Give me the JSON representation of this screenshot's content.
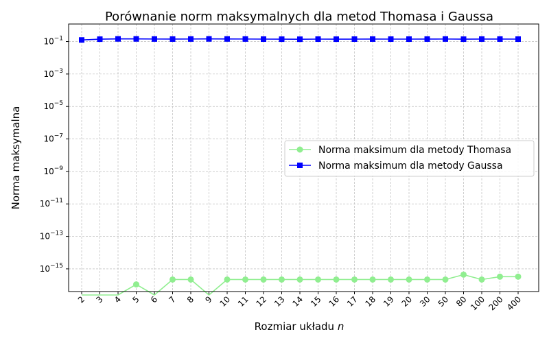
{
  "chart_data": {
    "type": "line",
    "title": "Porównanie norm maksymalnych dla metod Thomasa i Gaussa",
    "xlabel": "Rozmiar układu ",
    "xlabel_var": "n",
    "ylabel": "Norma maksymalna",
    "yscale": "log",
    "ylim": [
      4e-17,
      1.2
    ],
    "y_ticks": [
      {
        "label": "10",
        "exp": "−1",
        "value": 0.1
      },
      {
        "label": "10",
        "exp": "−3",
        "value": 0.001
      },
      {
        "label": "10",
        "exp": "−5",
        "value": 1e-05
      },
      {
        "label": "10",
        "exp": "−7",
        "value": 1e-07
      },
      {
        "label": "10",
        "exp": "−9",
        "value": 1e-09
      },
      {
        "label": "10",
        "exp": "−11",
        "value": 1e-11
      },
      {
        "label": "10",
        "exp": "−13",
        "value": 1e-13
      },
      {
        "label": "10",
        "exp": "−15",
        "value": 1e-15
      }
    ],
    "categories": [
      "2",
      "3",
      "4",
      "5",
      "6",
      "7",
      "8",
      "9",
      "10",
      "11",
      "12",
      "13",
      "14",
      "15",
      "16",
      "17",
      "18",
      "19",
      "20",
      "30",
      "50",
      "80",
      "100",
      "200",
      "400"
    ],
    "grid": true,
    "legend_position": "center-right",
    "series": [
      {
        "name": "Norma maksimum dla metody Thomasa",
        "color": "#90ee90",
        "marker": "circle",
        "values": [
          0,
          0,
          0,
          1.1e-16,
          0,
          2.2e-16,
          2.2e-16,
          0,
          2.2e-16,
          2.2e-16,
          2.2e-16,
          2.2e-16,
          2.2e-16,
          2.2e-16,
          2.2e-16,
          2.2e-16,
          2.2e-16,
          2.2e-16,
          2.2e-16,
          2.2e-16,
          2.2e-16,
          4.4e-16,
          2.2e-16,
          3.3e-16,
          3.3e-16
        ]
      },
      {
        "name": "Norma maksimum dla metody Gaussa",
        "color": "#0000ff",
        "marker": "square",
        "values": [
          0.125,
          0.14,
          0.145,
          0.145,
          0.143,
          0.142,
          0.143,
          0.145,
          0.144,
          0.143,
          0.141,
          0.14,
          0.139,
          0.141,
          0.14,
          0.141,
          0.142,
          0.141,
          0.141,
          0.142,
          0.143,
          0.14,
          0.142,
          0.142,
          0.141
        ]
      }
    ]
  }
}
